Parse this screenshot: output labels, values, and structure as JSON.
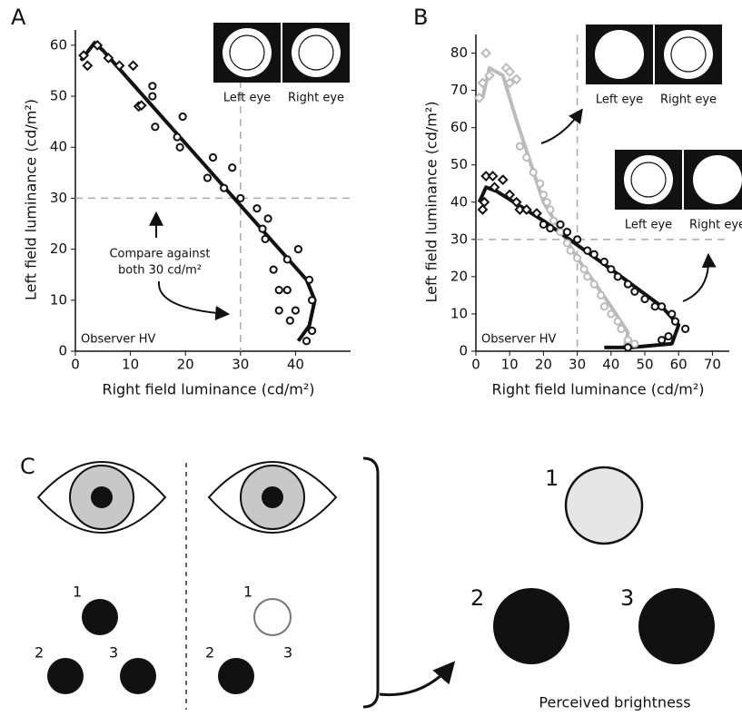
{
  "chart_data": [
    {
      "type": "scatter",
      "label": "A",
      "annotation": "Observer HV",
      "xlabel": "Right field luminance (cd/m²)",
      "ylabel": "Left field luminance (cd/m²)",
      "xlim": [
        0,
        50
      ],
      "ylim": [
        0,
        63
      ],
      "xticks": [
        0,
        10,
        20,
        30,
        40
      ],
      "yticks": [
        0,
        10,
        20,
        30,
        40,
        50,
        60
      ],
      "reference_x": 30,
      "reference_y": 30,
      "note_lines": [
        "Compare against",
        "both 30 cd/m²"
      ],
      "insets": [
        {
          "left": "Left eye",
          "right": "Right eye"
        }
      ],
      "series": [
        {
          "marker": "diamond",
          "color": "#111111",
          "x": [
            1.5,
            2.2,
            4,
            6,
            8,
            10.5,
            11.5,
            12
          ],
          "y": [
            58,
            56,
            60,
            57.5,
            56,
            56,
            48,
            48.2
          ]
        },
        {
          "marker": "circle",
          "color": "#111111",
          "x": [
            14,
            14,
            14.5,
            18.5,
            19,
            19.5,
            24,
            25,
            27,
            28.5,
            30,
            33,
            34,
            34.5,
            35,
            36,
            37,
            37,
            38.5,
            38.5,
            39,
            40,
            40.5,
            42,
            43,
            43,
            42.5
          ],
          "y": [
            52,
            50,
            44,
            42,
            40,
            46,
            34,
            38,
            32,
            36,
            30,
            28,
            24,
            22,
            26,
            16,
            12,
            8,
            18,
            12,
            6,
            8,
            20,
            2,
            4,
            10,
            14
          ]
        }
      ],
      "fits": [
        {
          "color": "#111111",
          "x": [
            1,
            3.5,
            5,
            42,
            43.5,
            42.5,
            40.5
          ],
          "y": [
            57,
            60.5,
            59,
            14,
            10,
            5,
            2
          ]
        }
      ]
    },
    {
      "type": "scatter",
      "label": "B",
      "annotation": "Observer HV",
      "xlabel": "Right field luminance (cd/m²)",
      "ylabel": "Left field luminance (cd/m²)",
      "xlim": [
        0,
        75
      ],
      "ylim": [
        0,
        85
      ],
      "xticks": [
        0,
        10,
        20,
        30,
        40,
        50,
        60,
        70
      ],
      "yticks": [
        0,
        10,
        20,
        30,
        40,
        50,
        60,
        70,
        80
      ],
      "reference_x": 30,
      "reference_y": 30,
      "insets": [
        {
          "left": "Left eye",
          "right": "Right eye"
        },
        {
          "left": "Left eye",
          "right": "Right eye"
        }
      ],
      "series": [
        {
          "marker": "diamond",
          "color": "#bbbbbb",
          "x": [
            1,
            2,
            3,
            4,
            9,
            10,
            10,
            12
          ],
          "y": [
            68,
            72,
            80,
            74,
            76,
            72,
            75,
            73
          ]
        },
        {
          "marker": "circle",
          "color": "#bbbbbb",
          "x": [
            13,
            15,
            17,
            19,
            20,
            21,
            22,
            23,
            25,
            27,
            28,
            30,
            32,
            33,
            35,
            37,
            38,
            40,
            42,
            43,
            45,
            47
          ],
          "y": [
            55,
            52,
            48,
            45,
            42,
            40,
            38,
            35,
            32,
            29,
            27,
            25,
            22,
            20,
            18,
            15,
            12,
            10,
            8,
            6,
            3,
            2
          ]
        },
        {
          "marker": "diamond",
          "color": "#111111",
          "x": [
            2,
            2.5,
            3,
            5,
            5.5,
            8,
            10,
            12,
            13,
            15,
            18
          ],
          "y": [
            38,
            40,
            47,
            47,
            44,
            46,
            42,
            40,
            38,
            38,
            37
          ]
        },
        {
          "marker": "circle",
          "color": "#111111",
          "x": [
            20,
            22,
            25,
            27,
            30,
            33,
            35,
            38,
            40,
            42,
            45,
            47,
            50,
            53,
            55,
            58,
            59,
            57,
            62,
            55,
            45
          ],
          "y": [
            34,
            33,
            34,
            32,
            30,
            27,
            26,
            24,
            22,
            20,
            18,
            16,
            14,
            12,
            12,
            10,
            8,
            4,
            6,
            3,
            1
          ]
        }
      ],
      "fits": [
        {
          "color": "#bbbbbb",
          "x": [
            2,
            4,
            8,
            12,
            20,
            30,
            40,
            45,
            44
          ],
          "y": [
            68,
            76,
            74,
            62,
            40,
            25,
            12,
            5,
            1
          ]
        },
        {
          "color": "#111111",
          "x": [
            1,
            3,
            6,
            20,
            40,
            55,
            60,
            58,
            46,
            38
          ],
          "y": [
            40,
            44,
            43,
            35,
            22,
            12,
            7,
            2,
            1,
            1
          ]
        }
      ]
    }
  ],
  "panel_c": {
    "label": "C",
    "left_labels": [
      "1",
      "2",
      "3"
    ],
    "right_labels": [
      "1",
      "2",
      "3"
    ],
    "result_labels": [
      "1",
      "2",
      "3"
    ],
    "caption": "Perceived brightness"
  }
}
